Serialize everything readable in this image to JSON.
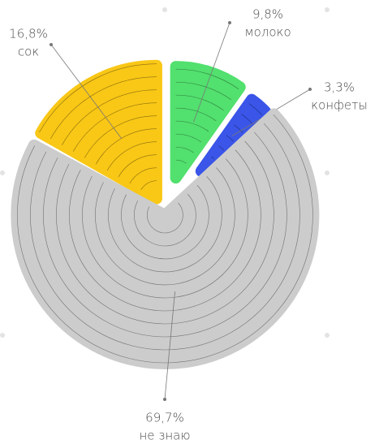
{
  "chart_data": {
    "type": "pie",
    "categories": [
      "сок",
      "молоко",
      "конфеты",
      "не знаю"
    ],
    "values": [
      16.8,
      9.8,
      3.3,
      69.7
    ],
    "value_labels": [
      "16,8%",
      "9,8%",
      "3,3%",
      "69,7%"
    ],
    "colors": [
      "#f9c716",
      "#52e06e",
      "#3a55e8",
      "#cccccc"
    ]
  }
}
